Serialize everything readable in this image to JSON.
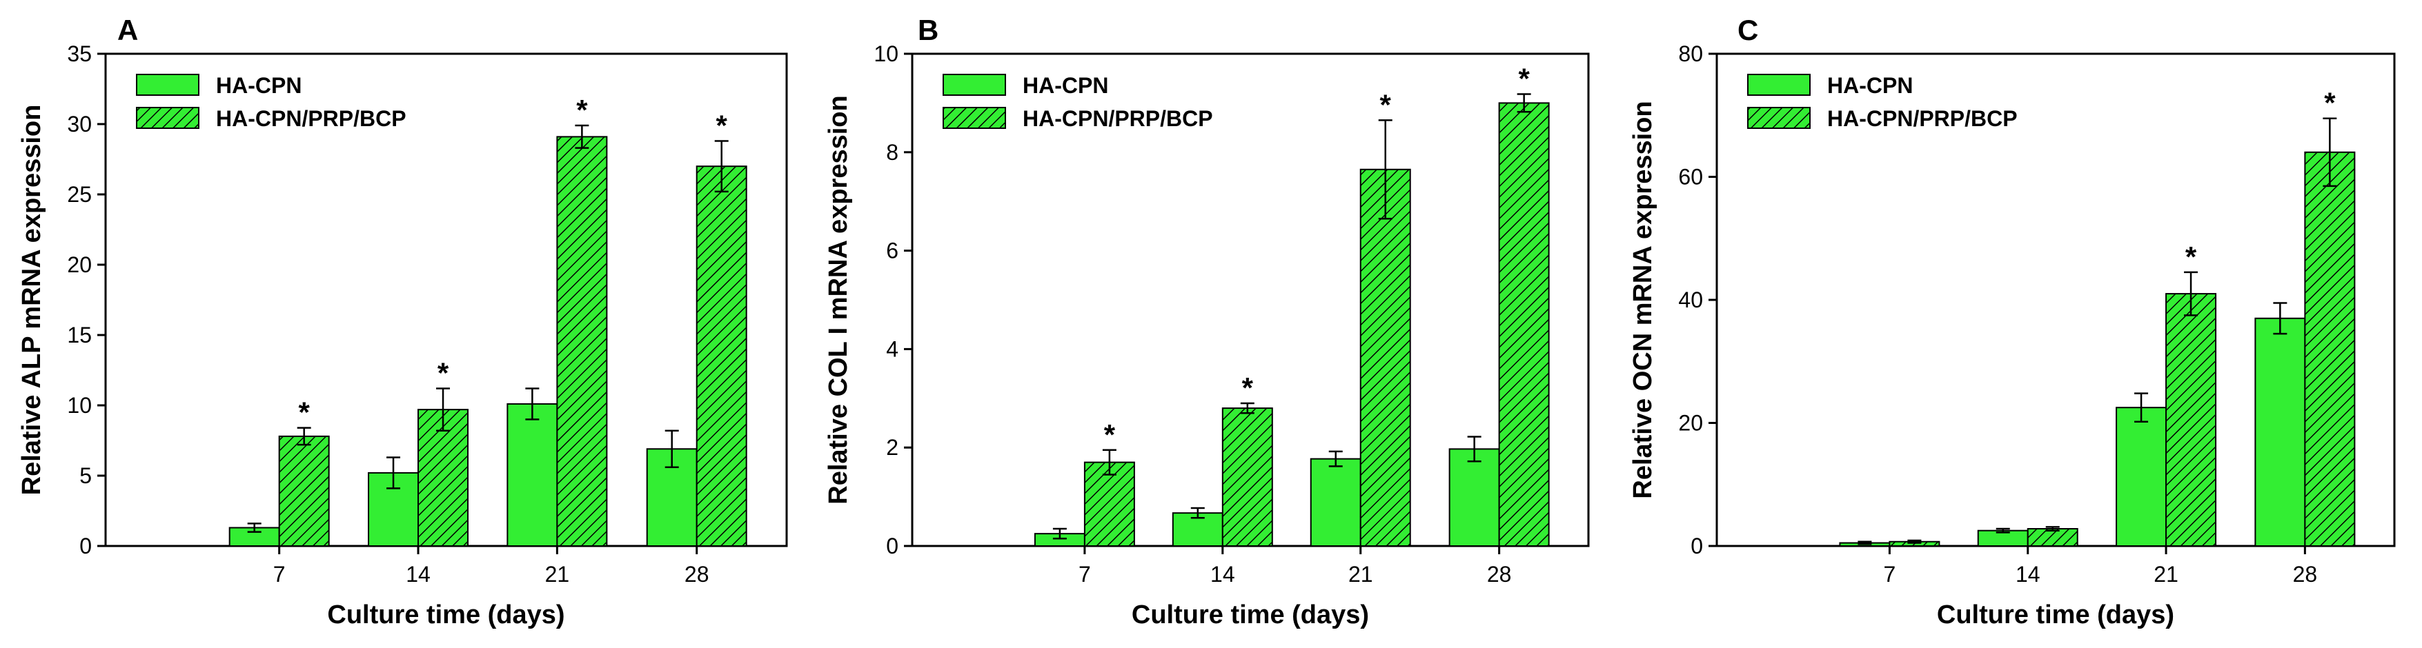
{
  "colors": {
    "bar_fill": "#33ee33",
    "hatch_line": "#000000",
    "axis": "#000000",
    "background": "#ffffff"
  },
  "significance_marker": "*",
  "chart_data": [
    {
      "type": "bar",
      "panel_label": "A",
      "xlabel": "Culture time (days)",
      "ylabel": "Relative ALP mRNA expression",
      "categories": [
        "7",
        "14",
        "21",
        "28"
      ],
      "ylim": [
        0,
        35
      ],
      "yticks": [
        0,
        5,
        10,
        15,
        20,
        25,
        30,
        35
      ],
      "grid": false,
      "legend_position": "top-left",
      "series": [
        {
          "name": "HA-CPN",
          "pattern": "solid",
          "values": [
            1.3,
            5.2,
            10.1,
            6.9
          ],
          "errors": [
            0.3,
            1.1,
            1.1,
            1.3
          ]
        },
        {
          "name": "HA-CPN/PRP/BCP",
          "pattern": "hatched",
          "values": [
            7.8,
            9.7,
            29.1,
            27.0
          ],
          "errors": [
            0.6,
            1.5,
            0.8,
            1.8
          ]
        }
      ],
      "significance": [
        "*",
        "*",
        "*",
        "*"
      ]
    },
    {
      "type": "bar",
      "panel_label": "B",
      "xlabel": "Culture time (days)",
      "ylabel": "Relative COL I mRNA expression",
      "categories": [
        "7",
        "14",
        "21",
        "28"
      ],
      "ylim": [
        0,
        10
      ],
      "yticks": [
        0,
        2,
        4,
        6,
        8,
        10
      ],
      "grid": false,
      "legend_position": "top-left",
      "series": [
        {
          "name": "HA-CPN",
          "pattern": "solid",
          "values": [
            0.25,
            0.67,
            1.77,
            1.97
          ],
          "errors": [
            0.1,
            0.1,
            0.15,
            0.25
          ]
        },
        {
          "name": "HA-CPN/PRP/BCP",
          "pattern": "hatched",
          "values": [
            1.7,
            2.8,
            7.65,
            9.0
          ],
          "errors": [
            0.25,
            0.1,
            1.0,
            0.18
          ]
        }
      ],
      "significance": [
        "*",
        "*",
        "*",
        "*"
      ]
    },
    {
      "type": "bar",
      "panel_label": "C",
      "xlabel": "Culture time (days)",
      "ylabel": "Relative OCN mRNA expression",
      "categories": [
        "7",
        "14",
        "21",
        "28"
      ],
      "ylim": [
        0,
        80
      ],
      "yticks": [
        0,
        20,
        40,
        60,
        80
      ],
      "grid": false,
      "legend_position": "top-left",
      "series": [
        {
          "name": "HA-CPN",
          "pattern": "solid",
          "values": [
            0.5,
            2.5,
            22.5,
            37.0
          ],
          "errors": [
            0.2,
            0.3,
            2.3,
            2.5
          ]
        },
        {
          "name": "HA-CPN/PRP/BCP",
          "pattern": "hatched",
          "values": [
            0.7,
            2.8,
            41.0,
            64.0
          ],
          "errors": [
            0.2,
            0.3,
            3.5,
            5.5
          ]
        }
      ],
      "significance": [
        "",
        "",
        "*",
        "*"
      ]
    }
  ]
}
